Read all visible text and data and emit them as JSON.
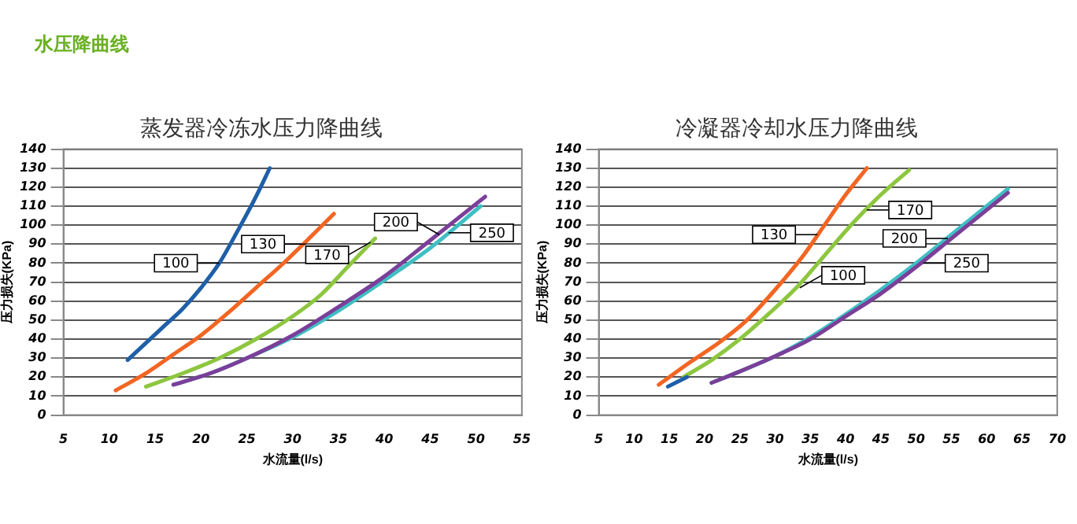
{
  "chart_data": [
    {
      "type": "line",
      "title": "蒸发器冷冻水压力降曲线",
      "xlabel": "水流量(l/s)",
      "ylabel": "压力损失(KPa)",
      "annotations": [
        "水压降曲线",
        {
          "text": "100",
          "x": 22,
          "y": 80
        },
        {
          "text": "130",
          "x": 31.5,
          "y": 90
        },
        {
          "text": "170",
          "x": 38.5,
          "y": 91
        },
        {
          "text": "200",
          "x": 46,
          "y": 95
        },
        {
          "text": "250",
          "x": 47,
          "y": 96
        }
      ],
      "xlim": [
        5,
        55
      ],
      "xticks": [
        5,
        10,
        15,
        20,
        25,
        30,
        35,
        40,
        45,
        50,
        55
      ],
      "ylim": [
        0,
        140
      ],
      "yticks": [
        0,
        10,
        20,
        30,
        40,
        50,
        60,
        70,
        80,
        90,
        100,
        110,
        120,
        130,
        140
      ],
      "grid": "y",
      "legend": false,
      "marker": "none",
      "series": [
        {
          "color": "#1f5fa8",
          "x": [
            12,
            14,
            16,
            18,
            20,
            22,
            24,
            26,
            27.5
          ],
          "values": [
            29,
            38,
            47,
            56,
            67,
            80,
            97,
            115,
            130
          ]
        },
        {
          "color": "#f26522",
          "x": [
            10.7,
            14,
            17,
            20,
            23,
            26,
            29,
            32,
            34.5
          ],
          "values": [
            13,
            22,
            32,
            42,
            54,
            67,
            80,
            94,
            106
          ]
        },
        {
          "color": "#8dc63f",
          "x": [
            14,
            18,
            22,
            26,
            30,
            33,
            36,
            39
          ],
          "values": [
            15,
            22,
            30,
            40,
            52,
            63,
            78,
            93
          ]
        },
        {
          "color": "#7b3f99",
          "x": [
            17,
            21,
            25,
            30,
            35,
            40,
            45,
            51
          ],
          "values": [
            16,
            22,
            30,
            42,
            57,
            73,
            92,
            115
          ]
        },
        {
          "color": "#3fbfc4",
          "x": [
            17,
            21,
            25,
            30,
            35,
            40,
            45,
            50.5
          ],
          "values": [
            16,
            22,
            30,
            41,
            55,
            71,
            88,
            110
          ]
        }
      ]
    },
    {
      "type": "line",
      "title": "冷凝器冷却水压力降曲线",
      "xlabel": "水流量(l/s)",
      "ylabel": "压力损失(KPa)",
      "annotations": [
        {
          "text": "130",
          "x": 36,
          "y": 95
        },
        {
          "text": "100",
          "x": 33.5,
          "y": 67
        },
        {
          "text": "170",
          "x": 43,
          "y": 108
        },
        {
          "text": "200",
          "x": 54.5,
          "y": 93
        },
        {
          "text": "250",
          "x": 51,
          "y": 80
        }
      ],
      "xlim": [
        5,
        70
      ],
      "xticks": [
        5,
        10,
        15,
        20,
        25,
        30,
        35,
        40,
        45,
        50,
        55,
        60,
        65,
        70
      ],
      "ylim": [
        0,
        140
      ],
      "yticks": [
        0,
        10,
        20,
        30,
        40,
        50,
        60,
        70,
        80,
        90,
        100,
        110,
        120,
        130,
        140
      ],
      "grid": "y",
      "legend": false,
      "marker": "none",
      "series": [
        {
          "color": "#f26522",
          "x": [
            13.5,
            18,
            22,
            26,
            30,
            34,
            37,
            40,
            43
          ],
          "values": [
            16,
            28,
            38,
            50,
            66,
            84,
            100,
            116,
            130
          ]
        },
        {
          "color": "#1f5fa8",
          "x": [
            14.8,
            17.5
          ],
          "values": [
            15,
            20
          ]
        },
        {
          "color": "#8dc63f",
          "x": [
            17,
            21,
            25,
            29,
            33,
            37,
            41,
            45,
            49
          ],
          "values": [
            20,
            29,
            40,
            53,
            67,
            84,
            101,
            116,
            129
          ]
        },
        {
          "color": "#7b3f99",
          "x": [
            21,
            25,
            30,
            35,
            40,
            45,
            50,
            55,
            60,
            63
          ],
          "values": [
            17,
            23,
            31,
            40,
            52,
            64,
            78,
            93,
            108,
            117
          ]
        },
        {
          "color": "#3fbfc4",
          "x": [
            21,
            25,
            30,
            35,
            40,
            45,
            50,
            55,
            60,
            63
          ],
          "values": [
            17,
            23,
            31,
            41,
            53,
            66,
            80,
            95,
            110,
            119
          ]
        }
      ]
    }
  ]
}
